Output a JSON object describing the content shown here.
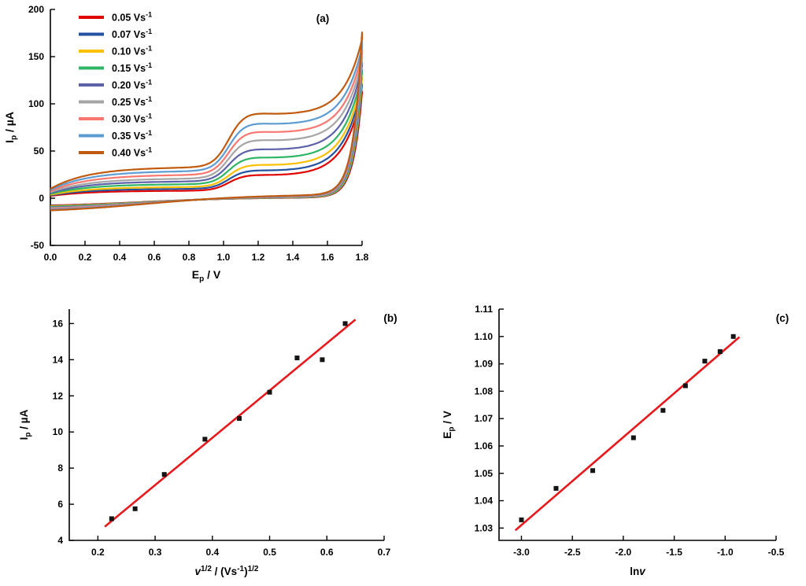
{
  "figure": {
    "background": "#ffffff",
    "panel_labels": [
      "(a)",
      "(b)",
      "(c)"
    ]
  },
  "chart_data": [
    {
      "id": "a",
      "type": "line",
      "subtype": "cyclic-voltammograms",
      "title": "",
      "panel_label": "(a)",
      "xlabel_parts": [
        {
          "t": "E"
        },
        {
          "t": "p",
          "sub": true
        },
        {
          "t": " / V"
        }
      ],
      "ylabel_parts": [
        {
          "t": "I"
        },
        {
          "t": "p",
          "sub": true
        },
        {
          "t": " / µA"
        }
      ],
      "xlim": [
        0,
        1.8
      ],
      "ylim": [
        -50,
        200
      ],
      "xticks": [
        [
          0,
          "0.0"
        ],
        [
          0.2,
          "0.2"
        ],
        [
          0.4,
          "0.4"
        ],
        [
          0.6,
          "0.6"
        ],
        [
          0.8,
          "0.8"
        ],
        [
          1.0,
          "1.0"
        ],
        [
          1.2,
          "1.2"
        ],
        [
          1.4,
          "1.4"
        ],
        [
          1.6,
          "1.6"
        ],
        [
          1.8,
          "1.8"
        ]
      ],
      "yticks": [
        [
          -50,
          "-50"
        ],
        [
          0,
          "0"
        ],
        [
          50,
          "50"
        ],
        [
          100,
          "100"
        ],
        [
          150,
          "150"
        ],
        [
          200,
          "200"
        ]
      ],
      "grid": false,
      "legend_position": "top-left",
      "series": [
        {
          "name": "0.05 Vs-1",
          "label_parts": [
            {
              "t": "0.05 Vs"
            },
            {
              "t": "-1",
              "sup": true
            }
          ],
          "color": "#e00400",
          "capacitive_uA": 8,
          "shoulder_peak_uA": 25,
          "current_at_1p8V_uA": 112
        },
        {
          "name": "0.07 Vs-1",
          "label_parts": [
            {
              "t": "0.07 Vs"
            },
            {
              "t": "-1",
              "sup": true
            }
          ],
          "color": "#2353a0",
          "capacitive_uA": 10,
          "shoulder_peak_uA": 30,
          "current_at_1p8V_uA": 120
        },
        {
          "name": "0.10 Vs-1",
          "label_parts": [
            {
              "t": "0.10 Vs"
            },
            {
              "t": "-1",
              "sup": true
            }
          ],
          "color": "#fcc000",
          "capacitive_uA": 12,
          "shoulder_peak_uA": 36,
          "current_at_1p8V_uA": 127
        },
        {
          "name": "0.15 Vs-1",
          "label_parts": [
            {
              "t": "0.15 Vs"
            },
            {
              "t": "-1",
              "sup": true
            }
          ],
          "color": "#2fb566",
          "capacitive_uA": 15,
          "shoulder_peak_uA": 44,
          "current_at_1p8V_uA": 134
        },
        {
          "name": "0.20 Vs-1",
          "label_parts": [
            {
              "t": "0.20 Vs"
            },
            {
              "t": "-1",
              "sup": true
            }
          ],
          "color": "#5c61a8",
          "capacitive_uA": 18,
          "shoulder_peak_uA": 53,
          "current_at_1p8V_uA": 142
        },
        {
          "name": "0.25 Vs-1",
          "label_parts": [
            {
              "t": "0.25 Vs"
            },
            {
              "t": "-1",
              "sup": true
            }
          ],
          "color": "#a5a5a5",
          "capacitive_uA": 21,
          "shoulder_peak_uA": 63,
          "current_at_1p8V_uA": 149
        },
        {
          "name": "0.30 Vs-1",
          "label_parts": [
            {
              "t": "0.30 Vs"
            },
            {
              "t": "-1",
              "sup": true
            }
          ],
          "color": "#f8776f",
          "capacitive_uA": 25,
          "shoulder_peak_uA": 72,
          "current_at_1p8V_uA": 156
        },
        {
          "name": "0.35 Vs-1",
          "label_parts": [
            {
              "t": "0.35 Vs"
            },
            {
              "t": "-1",
              "sup": true
            }
          ],
          "color": "#5d9bd3",
          "capacitive_uA": 29,
          "shoulder_peak_uA": 81,
          "current_at_1p8V_uA": 163
        },
        {
          "name": "0.40 Vs-1",
          "label_parts": [
            {
              "t": "0.40 Vs"
            },
            {
              "t": "-1",
              "sup": true
            }
          ],
          "color": "#c05a0e",
          "capacitive_uA": 33,
          "shoulder_peak_uA": 92,
          "current_at_1p8V_uA": 172
        }
      ]
    },
    {
      "id": "b",
      "type": "scatter",
      "title": "",
      "panel_label": "(b)",
      "xlabel_parts": [
        {
          "t": "v",
          "italic": true
        },
        {
          "t": "1/2",
          "sup": true
        },
        {
          "t": " / (Vs"
        },
        {
          "t": "-1",
          "sup": true
        },
        {
          "t": ")"
        },
        {
          "t": "1/2",
          "sup": true
        }
      ],
      "ylabel_parts": [
        {
          "t": "I"
        },
        {
          "t": "p",
          "sub": true
        },
        {
          "t": " / µA"
        }
      ],
      "xlim": [
        0.15,
        0.7
      ],
      "ylim": [
        4,
        16.8
      ],
      "xticks": [
        [
          0.2,
          "0.2"
        ],
        [
          0.3,
          "0.3"
        ],
        [
          0.4,
          "0.4"
        ],
        [
          0.5,
          "0.5"
        ],
        [
          0.6,
          "0.6"
        ],
        [
          0.7,
          "0.7"
        ]
      ],
      "yticks": [
        [
          4,
          "4"
        ],
        [
          6,
          "6"
        ],
        [
          8,
          "8"
        ],
        [
          10,
          "10"
        ],
        [
          12,
          "12"
        ],
        [
          14,
          "14"
        ],
        [
          16,
          "16"
        ]
      ],
      "grid": false,
      "marker_color": "#141414",
      "points": [
        [
          0.224,
          5.2
        ],
        [
          0.265,
          5.75
        ],
        [
          0.316,
          7.65
        ],
        [
          0.387,
          9.6
        ],
        [
          0.447,
          10.75
        ],
        [
          0.5,
          12.2
        ],
        [
          0.548,
          14.1
        ],
        [
          0.592,
          14.0
        ],
        [
          0.632,
          16.0
        ]
      ],
      "fit": {
        "slope": 26.17,
        "intercept": -0.79,
        "x_start": 0.212,
        "x_end": 0.65,
        "color": "#e8191c"
      }
    },
    {
      "id": "c",
      "type": "scatter",
      "title": "",
      "panel_label": "(c)",
      "xlabel_parts": [
        {
          "t": "ln"
        },
        {
          "t": "v",
          "italic": true
        }
      ],
      "ylabel_parts": [
        {
          "t": "E"
        },
        {
          "t": "p",
          "sub": true
        },
        {
          "t": " / V"
        }
      ],
      "xlim": [
        -3.22,
        -0.5
      ],
      "ylim": [
        1.0255,
        1.11
      ],
      "xticks": [
        [
          -3.0,
          "-3.0"
        ],
        [
          -2.5,
          "-2.5"
        ],
        [
          -2.0,
          "-2.0"
        ],
        [
          -1.5,
          "-1.5"
        ],
        [
          -1.0,
          "-1.0"
        ],
        [
          -0.5,
          "-0.5"
        ]
      ],
      "yticks": [
        [
          1.03,
          "1.03"
        ],
        [
          1.04,
          "1.04"
        ],
        [
          1.05,
          "1.05"
        ],
        [
          1.06,
          "1.06"
        ],
        [
          1.07,
          "1.07"
        ],
        [
          1.08,
          "1.08"
        ],
        [
          1.09,
          "1.09"
        ],
        [
          1.1,
          "1.10"
        ],
        [
          1.11,
          "1.11"
        ]
      ],
      "grid": false,
      "marker_color": "#141414",
      "points": [
        [
          -3.0,
          1.033
        ],
        [
          -2.66,
          1.0445
        ],
        [
          -2.3,
          1.051
        ],
        [
          -1.9,
          1.063
        ],
        [
          -1.61,
          1.073
        ],
        [
          -1.39,
          1.082
        ],
        [
          -1.2,
          1.091
        ],
        [
          -1.05,
          1.0945
        ],
        [
          -0.92,
          1.1
        ]
      ],
      "fit": {
        "slope": 0.0321,
        "intercept": 1.1274,
        "x_start": -3.06,
        "x_end": -0.86,
        "color": "#e8191c"
      }
    }
  ]
}
